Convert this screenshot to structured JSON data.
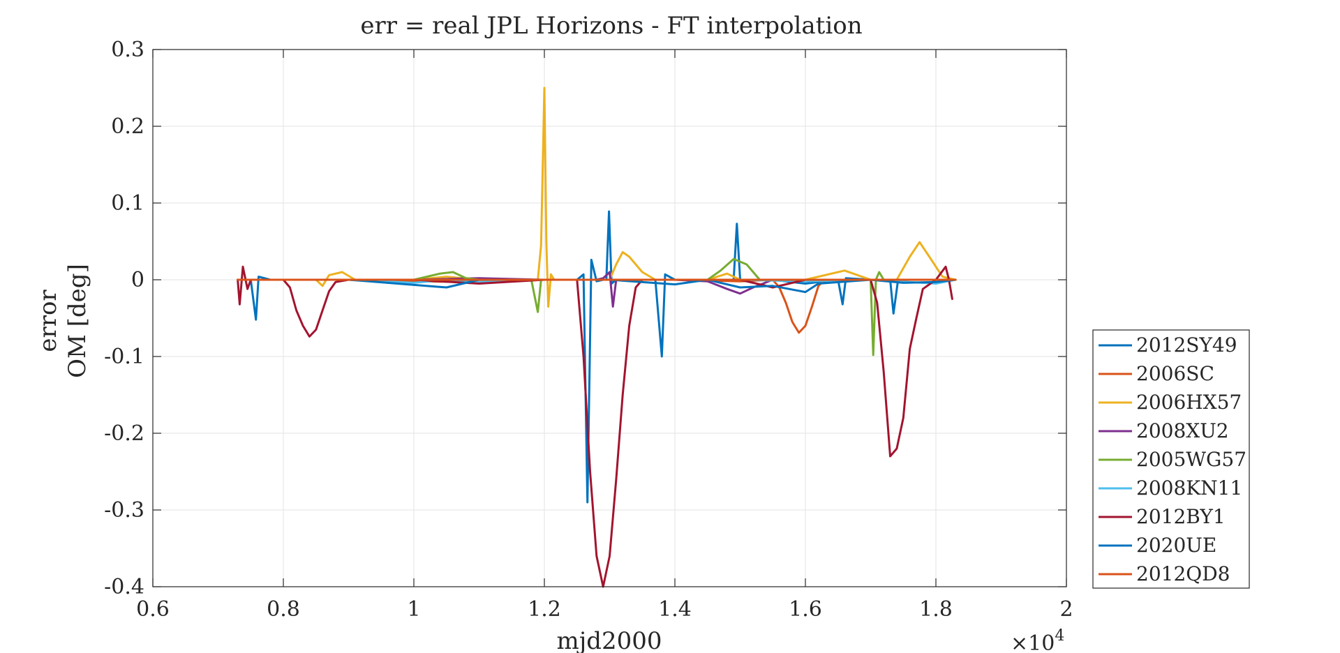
{
  "chart_data": {
    "type": "line",
    "title": "err = real JPL Horizons - FT interpolation",
    "xlabel": "mjd2000",
    "ylabel_lines": [
      "error",
      "OM [deg]"
    ],
    "x_multiplier_label": "×10",
    "x_multiplier_exponent": "4",
    "xlim": [
      0.6,
      2.0
    ],
    "ylim": [
      -0.4,
      0.3
    ],
    "xticks": [
      0.6,
      0.8,
      1.0,
      1.2,
      1.4,
      1.6,
      1.8,
      2.0
    ],
    "xtick_labels": [
      "0.6",
      "0.8",
      "1",
      "1.2",
      "1.4",
      "1.6",
      "1.8",
      "2"
    ],
    "yticks": [
      0.3,
      0.2,
      0.1,
      0.0,
      -0.1,
      -0.2,
      -0.3,
      -0.4
    ],
    "ytick_labels": [
      "0.3",
      "0.2",
      "0.1",
      "0",
      "-0.1",
      "-0.2",
      "-0.3",
      "-0.4"
    ],
    "grid": true,
    "legend_position": "outside-right-bottom",
    "series": [
      {
        "name": "2012SY49",
        "color": "#0072BD",
        "points": [
          [
            0.73,
            0.0
          ],
          [
            0.75,
            0.0
          ],
          [
            0.758,
            -0.052
          ],
          [
            0.762,
            0.004
          ],
          [
            0.78,
            0.0
          ],
          [
            0.9,
            0.0
          ],
          [
            1.0,
            -0.001
          ],
          [
            1.1,
            0.0
          ],
          [
            1.2,
            0.0
          ],
          [
            1.25,
            0.0
          ],
          [
            1.26,
            0.007
          ],
          [
            1.266,
            -0.29
          ],
          [
            1.272,
            0.026
          ],
          [
            1.28,
            -0.002
          ],
          [
            1.29,
            0.0
          ],
          [
            1.295,
            0.0
          ],
          [
            1.299,
            0.089
          ],
          [
            1.303,
            -0.005
          ],
          [
            1.31,
            0.0
          ],
          [
            1.37,
            0.0
          ],
          [
            1.38,
            -0.1
          ],
          [
            1.385,
            0.007
          ],
          [
            1.4,
            0.0
          ],
          [
            1.48,
            0.0
          ],
          [
            1.49,
            0.0
          ],
          [
            1.495,
            0.073
          ],
          [
            1.5,
            0.0
          ],
          [
            1.55,
            0.0
          ],
          [
            1.6,
            -0.005
          ],
          [
            1.65,
            0.0
          ],
          [
            1.657,
            -0.032
          ],
          [
            1.662,
            0.002
          ],
          [
            1.7,
            0.0
          ],
          [
            1.73,
            0.0
          ],
          [
            1.735,
            -0.044
          ],
          [
            1.742,
            0.0
          ],
          [
            1.8,
            0.0
          ],
          [
            1.83,
            0.0
          ]
        ]
      },
      {
        "name": "2006SC",
        "color": "#D95319",
        "points": [
          [
            0.73,
            0.0
          ],
          [
            0.9,
            0.0
          ],
          [
            1.0,
            -0.002
          ],
          [
            1.1,
            -0.003
          ],
          [
            1.2,
            0.0
          ],
          [
            1.3,
            0.0
          ],
          [
            1.4,
            0.0
          ],
          [
            1.5,
            -0.002
          ],
          [
            1.55,
            0.0
          ],
          [
            1.56,
            -0.01
          ],
          [
            1.57,
            -0.03
          ],
          [
            1.58,
            -0.055
          ],
          [
            1.59,
            -0.069
          ],
          [
            1.6,
            -0.06
          ],
          [
            1.61,
            -0.035
          ],
          [
            1.62,
            -0.008
          ],
          [
            1.63,
            0.0
          ],
          [
            1.7,
            0.0
          ],
          [
            1.8,
            0.0
          ],
          [
            1.83,
            0.0
          ]
        ]
      },
      {
        "name": "2006HX57",
        "color": "#EDB120",
        "points": [
          [
            0.73,
            0.0
          ],
          [
            0.85,
            0.0
          ],
          [
            0.86,
            -0.008
          ],
          [
            0.87,
            0.006
          ],
          [
            0.89,
            0.01
          ],
          [
            0.91,
            0.0
          ],
          [
            1.0,
            0.0
          ],
          [
            1.05,
            0.004
          ],
          [
            1.1,
            0.0
          ],
          [
            1.19,
            0.0
          ],
          [
            1.195,
            0.045
          ],
          [
            1.2,
            0.25
          ],
          [
            1.203,
            0.05
          ],
          [
            1.206,
            -0.035
          ],
          [
            1.21,
            0.007
          ],
          [
            1.215,
            0.0
          ],
          [
            1.3,
            0.0
          ],
          [
            1.31,
            0.02
          ],
          [
            1.32,
            0.036
          ],
          [
            1.33,
            0.03
          ],
          [
            1.35,
            0.01
          ],
          [
            1.37,
            0.0
          ],
          [
            1.45,
            0.0
          ],
          [
            1.48,
            0.008
          ],
          [
            1.5,
            0.0
          ],
          [
            1.6,
            0.0
          ],
          [
            1.66,
            0.012
          ],
          [
            1.7,
            0.0
          ],
          [
            1.74,
            0.0
          ],
          [
            1.76,
            0.03
          ],
          [
            1.775,
            0.049
          ],
          [
            1.79,
            0.03
          ],
          [
            1.81,
            0.004
          ],
          [
            1.83,
            0.0
          ]
        ]
      },
      {
        "name": "2008XU2",
        "color": "#7E2F8E",
        "points": [
          [
            0.73,
            0.0
          ],
          [
            0.9,
            0.0
          ],
          [
            1.0,
            0.0
          ],
          [
            1.1,
            0.002
          ],
          [
            1.2,
            0.0
          ],
          [
            1.28,
            0.0
          ],
          [
            1.29,
            0.002
          ],
          [
            1.3,
            0.01
          ],
          [
            1.305,
            -0.035
          ],
          [
            1.31,
            0.0
          ],
          [
            1.4,
            0.0
          ],
          [
            1.45,
            -0.002
          ],
          [
            1.48,
            -0.012
          ],
          [
            1.5,
            -0.018
          ],
          [
            1.52,
            -0.01
          ],
          [
            1.55,
            0.0
          ],
          [
            1.7,
            0.0
          ],
          [
            1.8,
            0.0
          ],
          [
            1.83,
            0.0
          ]
        ]
      },
      {
        "name": "2005WG57",
        "color": "#77AC30",
        "points": [
          [
            0.73,
            0.0
          ],
          [
            0.9,
            0.0
          ],
          [
            1.0,
            0.0
          ],
          [
            1.04,
            0.008
          ],
          [
            1.06,
            0.01
          ],
          [
            1.08,
            0.002
          ],
          [
            1.1,
            0.0
          ],
          [
            1.18,
            0.0
          ],
          [
            1.19,
            -0.042
          ],
          [
            1.195,
            0.0
          ],
          [
            1.2,
            0.0
          ],
          [
            1.45,
            0.0
          ],
          [
            1.47,
            0.012
          ],
          [
            1.49,
            0.027
          ],
          [
            1.51,
            0.02
          ],
          [
            1.53,
            0.0
          ],
          [
            1.6,
            0.0
          ],
          [
            1.7,
            0.0
          ],
          [
            1.704,
            -0.098
          ],
          [
            1.708,
            0.0
          ],
          [
            1.713,
            0.01
          ],
          [
            1.72,
            0.0
          ],
          [
            1.83,
            0.0
          ]
        ]
      },
      {
        "name": "2008KN11",
        "color": "#4DBEEE",
        "points": [
          [
            0.73,
            0.0
          ],
          [
            0.9,
            0.0
          ],
          [
            1.0,
            -0.004
          ],
          [
            1.05,
            0.0
          ],
          [
            1.1,
            -0.003
          ],
          [
            1.2,
            0.0
          ],
          [
            1.3,
            0.0
          ],
          [
            1.4,
            0.0
          ],
          [
            1.5,
            0.0
          ],
          [
            1.6,
            -0.002
          ],
          [
            1.7,
            0.0
          ],
          [
            1.8,
            -0.005
          ],
          [
            1.83,
            0.0
          ]
        ]
      },
      {
        "name": "2012BY1",
        "color": "#A2142F",
        "points": [
          [
            0.73,
            0.0
          ],
          [
            0.733,
            -0.032
          ],
          [
            0.738,
            0.017
          ],
          [
            0.745,
            -0.012
          ],
          [
            0.75,
            0.0
          ],
          [
            0.8,
            0.0
          ],
          [
            0.81,
            -0.01
          ],
          [
            0.82,
            -0.04
          ],
          [
            0.83,
            -0.06
          ],
          [
            0.84,
            -0.074
          ],
          [
            0.85,
            -0.065
          ],
          [
            0.86,
            -0.04
          ],
          [
            0.87,
            -0.015
          ],
          [
            0.88,
            -0.003
          ],
          [
            0.9,
            0.0
          ],
          [
            1.0,
            0.0
          ],
          [
            1.1,
            -0.005
          ],
          [
            1.2,
            0.0
          ],
          [
            1.25,
            0.0
          ],
          [
            1.26,
            -0.1
          ],
          [
            1.27,
            -0.25
          ],
          [
            1.28,
            -0.36
          ],
          [
            1.29,
            -0.4
          ],
          [
            1.3,
            -0.36
          ],
          [
            1.31,
            -0.26
          ],
          [
            1.32,
            -0.15
          ],
          [
            1.33,
            -0.06
          ],
          [
            1.34,
            -0.01
          ],
          [
            1.35,
            0.0
          ],
          [
            1.5,
            0.0
          ],
          [
            1.55,
            -0.01
          ],
          [
            1.6,
            0.0
          ],
          [
            1.7,
            0.0
          ],
          [
            1.71,
            -0.03
          ],
          [
            1.72,
            -0.12
          ],
          [
            1.73,
            -0.23
          ],
          [
            1.74,
            -0.22
          ],
          [
            1.75,
            -0.18
          ],
          [
            1.76,
            -0.09
          ],
          [
            1.77,
            -0.05
          ],
          [
            1.78,
            -0.012
          ],
          [
            1.8,
            0.0
          ],
          [
            1.815,
            0.017
          ],
          [
            1.82,
            0.0
          ],
          [
            1.825,
            -0.025
          ]
        ]
      },
      {
        "name": "2020UE",
        "color": "#0072BD",
        "points": [
          [
            0.73,
            0.0
          ],
          [
            0.9,
            0.0
          ],
          [
            1.05,
            -0.01
          ],
          [
            1.1,
            0.0
          ],
          [
            1.2,
            0.0
          ],
          [
            1.3,
            0.0
          ],
          [
            1.4,
            -0.006
          ],
          [
            1.45,
            0.0
          ],
          [
            1.5,
            -0.01
          ],
          [
            1.55,
            -0.008
          ],
          [
            1.6,
            -0.016
          ],
          [
            1.62,
            -0.005
          ],
          [
            1.7,
            0.0
          ],
          [
            1.75,
            -0.004
          ],
          [
            1.8,
            -0.003
          ],
          [
            1.83,
            0.0
          ]
        ]
      },
      {
        "name": "2012QD8",
        "color": "#D95319",
        "points": [
          [
            0.73,
            0.0
          ],
          [
            0.9,
            0.0
          ],
          [
            1.0,
            0.0
          ],
          [
            1.1,
            0.0
          ],
          [
            1.2,
            0.0
          ],
          [
            1.3,
            0.0
          ],
          [
            1.4,
            0.0
          ],
          [
            1.5,
            0.0
          ],
          [
            1.6,
            0.0
          ],
          [
            1.7,
            0.0
          ],
          [
            1.8,
            0.0
          ],
          [
            1.83,
            0.0
          ]
        ]
      }
    ]
  }
}
